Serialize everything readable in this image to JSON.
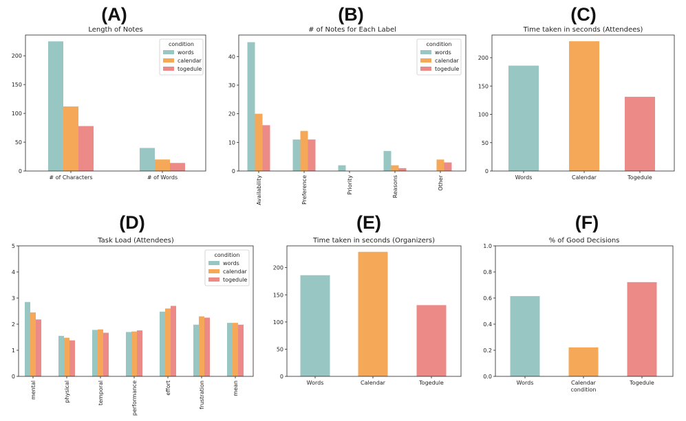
{
  "colors": {
    "words": "#98c7c3",
    "calendar": "#f5a857",
    "togedule": "#ec8a87"
  },
  "legend_title": "condition",
  "chart_data": [
    {
      "id": "A",
      "panel_label": "(A)",
      "type": "bar",
      "title": "Length of Notes",
      "categories": [
        "# of Characters",
        "# of Words"
      ],
      "series": [
        {
          "name": "words",
          "values": [
            225,
            40
          ]
        },
        {
          "name": "calendar",
          "values": [
            112,
            20
          ]
        },
        {
          "name": "togedule",
          "values": [
            78,
            14
          ]
        }
      ],
      "ylim": [
        0,
        236
      ],
      "yticks": [
        0,
        50,
        100,
        150,
        200
      ],
      "legend": "top-right",
      "rotate_x": false,
      "xlabel": ""
    },
    {
      "id": "B",
      "panel_label": "(B)",
      "type": "bar",
      "title": "# of Notes for Each Label",
      "categories": [
        "Availability",
        "Preference",
        "Priority",
        "Reasons",
        "Other"
      ],
      "series": [
        {
          "name": "words",
          "values": [
            45,
            11,
            2,
            7,
            0
          ]
        },
        {
          "name": "calendar",
          "values": [
            20,
            14,
            0,
            2,
            4
          ]
        },
        {
          "name": "togedule",
          "values": [
            16,
            11,
            0,
            1,
            3
          ]
        }
      ],
      "ylim": [
        0,
        47.5
      ],
      "yticks": [
        0,
        10,
        20,
        30,
        40
      ],
      "legend": "top-right",
      "rotate_x": true,
      "xlabel": ""
    },
    {
      "id": "C",
      "panel_label": "(C)",
      "type": "bar",
      "title": "Time taken in seconds (Attendees)",
      "categories": [
        "Words",
        "Calendar",
        "Togedule"
      ],
      "values": [
        186,
        229,
        131
      ],
      "ylim": [
        0,
        240
      ],
      "yticks": [
        0,
        50,
        100,
        150,
        200
      ],
      "legend": "none",
      "rotate_x": false,
      "xlabel": ""
    },
    {
      "id": "D",
      "panel_label": "(D)",
      "type": "bar",
      "title": "Task Load (Attendees)",
      "categories": [
        "mental",
        "physical",
        "temporal",
        "performance",
        "effort",
        "frustration",
        "mean"
      ],
      "series": [
        {
          "name": "words",
          "values": [
            2.85,
            1.55,
            1.78,
            1.7,
            2.48,
            1.98,
            2.05
          ]
        },
        {
          "name": "calendar",
          "values": [
            2.45,
            1.48,
            1.8,
            1.72,
            2.6,
            2.3,
            2.05
          ]
        },
        {
          "name": "togedule",
          "values": [
            2.18,
            1.38,
            1.67,
            1.76,
            2.7,
            2.25,
            1.98
          ]
        }
      ],
      "ylim": [
        0,
        5
      ],
      "yticks": [
        0,
        1,
        2,
        3,
        4,
        5
      ],
      "legend": "top-right",
      "rotate_x": true,
      "xlabel": ""
    },
    {
      "id": "E",
      "panel_label": "(E)",
      "type": "bar",
      "title": "Time taken in seconds (Organizers)",
      "categories": [
        "Words",
        "Calendar",
        "Togedule"
      ],
      "values": [
        186,
        229,
        131
      ],
      "ylim": [
        0,
        240
      ],
      "yticks": [
        0,
        50,
        100,
        150,
        200
      ],
      "legend": "none",
      "rotate_x": false,
      "xlabel": ""
    },
    {
      "id": "F",
      "panel_label": "(F)",
      "type": "bar",
      "title": "% of Good Decisions",
      "categories": [
        "Words",
        "Calendar",
        "Togedule"
      ],
      "values": [
        0.615,
        0.222,
        0.722
      ],
      "ylim": [
        0,
        1.0
      ],
      "yticks": [
        0.0,
        0.2,
        0.4,
        0.6,
        0.8,
        1.0
      ],
      "legend": "none",
      "rotate_x": false,
      "xlabel": "condition"
    }
  ]
}
